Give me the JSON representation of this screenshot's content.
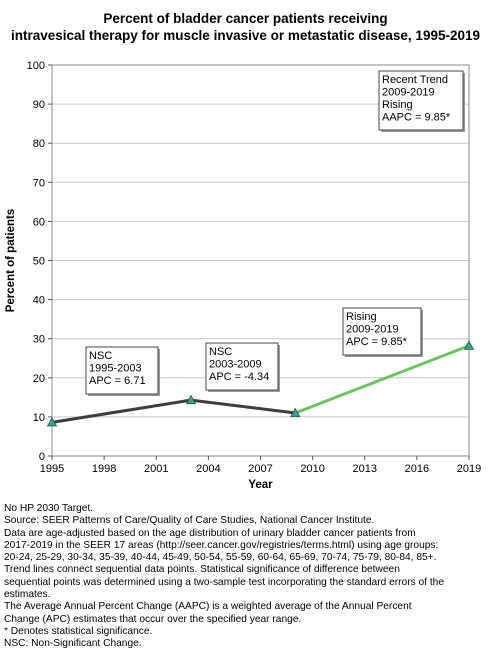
{
  "title_line1": "Percent of bladder cancer patients receiving",
  "title_line2": "intravesical therapy for muscle invasive or metastatic disease, 1995-2019",
  "chart_data": {
    "type": "line",
    "xlabel": "Year",
    "ylabel": "Percent of patients",
    "xlim": [
      1995,
      2019
    ],
    "ylim": [
      0,
      100
    ],
    "x_ticks": [
      1995,
      1998,
      2001,
      2004,
      2007,
      2010,
      2013,
      2016,
      2019
    ],
    "y_ticks": [
      0,
      10,
      20,
      30,
      40,
      50,
      60,
      70,
      80,
      90,
      100
    ],
    "grid": "horizontal",
    "data_points": [
      {
        "x": 1995,
        "y": 8.6
      },
      {
        "x": 2003,
        "y": 14.3
      },
      {
        "x": 2009,
        "y": 11.0
      },
      {
        "x": 2019,
        "y": 28.2
      }
    ],
    "trend_segments": [
      {
        "from": 1995,
        "to": 2003,
        "color": "#3d3d3d"
      },
      {
        "from": 2003,
        "to": 2009,
        "color": "#3d3d3d"
      },
      {
        "from": 2009,
        "to": 2019,
        "color": "#6cc35e"
      }
    ],
    "marker_color": "#3aa08c",
    "annotations": [
      {
        "id": "seg1",
        "lines": [
          "NSC",
          "1995-2003",
          "APC =  6.71"
        ]
      },
      {
        "id": "seg2",
        "lines": [
          "NSC",
          "2003-2009",
          "APC = -4.34"
        ]
      },
      {
        "id": "seg3",
        "lines": [
          "Rising",
          "2009-2019",
          "APC =  9.85*"
        ]
      },
      {
        "id": "recent",
        "lines": [
          "Recent Trend",
          "2009-2019",
          "Rising",
          "AAPC =  9.85*"
        ]
      }
    ]
  },
  "notes": [
    "No HP 2030 Target.",
    "Source: SEER Patterns of Care/Quality of Care Studies, National Cancer Institute.",
    "Data are age-adjusted based on the age distribution of urinary bladder cancer patients from",
    "2017-2019 in the SEER 17 areas (http://seer.cancer.gov/registries/terms.html) using age groups:",
    "20-24, 25-29, 30-34, 35-39, 40-44, 45-49, 50-54, 55-59, 60-64, 65-69, 70-74, 75-79, 80-84, 85+.",
    "Trend lines connect sequential data points. Statistical significance of difference between",
    "sequential points was determined using a two-sample test incorporating the standard errors of the",
    "estimates.",
    "The Average Annual Percent Change (AAPC) is a weighted average of the Annual Percent",
    "Change (APC) estimates that occur over the specified year range.",
    "* Denotes statistical significance.",
    "NSC: Non-Significant Change."
  ]
}
